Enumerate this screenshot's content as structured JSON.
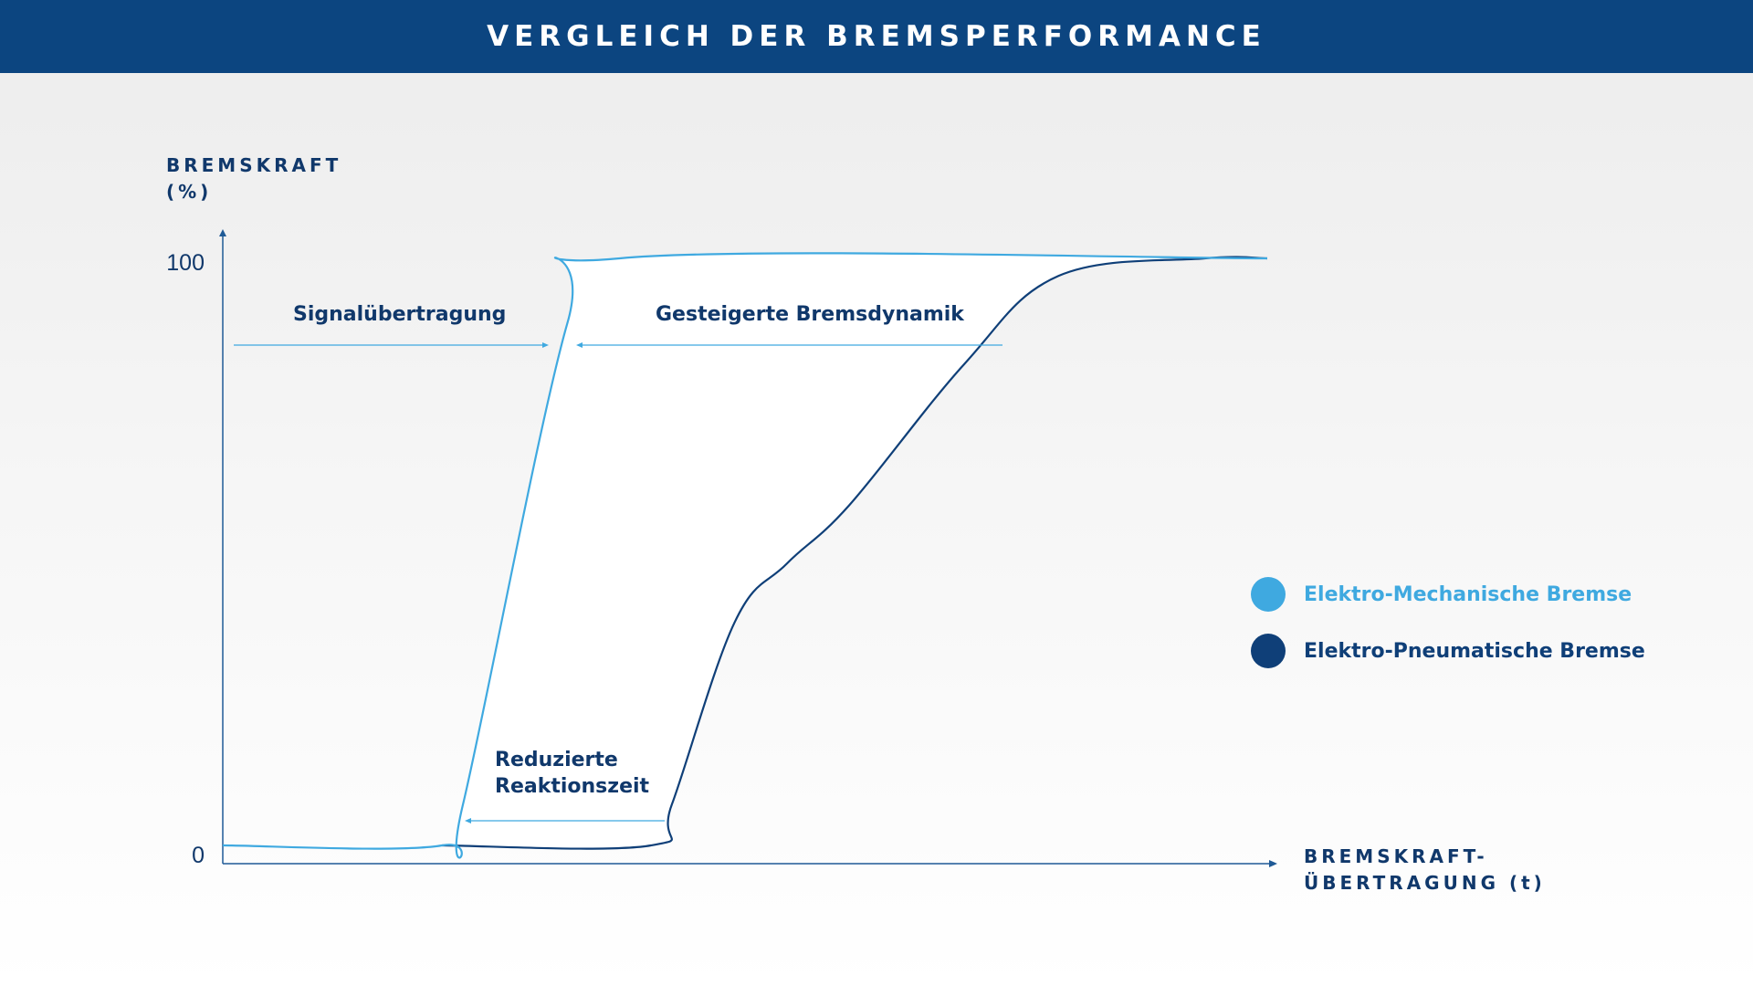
{
  "header": {
    "title": "VERGLEICH DER BREMSPERFORMANCE"
  },
  "colors": {
    "header_bg": "#0c4580",
    "axis": "#1f5a96",
    "electro_mechanical": "#3fa9e0",
    "electro_pneumatic": "#0f3f78",
    "text_dark": "#10386b"
  },
  "chart_data": {
    "type": "line",
    "ylabel": [
      "BREMSKRAFT",
      "(%)"
    ],
    "xlabel": [
      "BREMSKRAFT-",
      "ÜBERTRAGUNG (t)"
    ],
    "yticks": [
      "100",
      "0"
    ],
    "ylim": [
      0,
      100
    ],
    "series": [
      {
        "name": "Elektro-Mechanische Bremse",
        "color": "#3fa9e0",
        "points": [
          [
            0,
            0
          ],
          [
            21,
            0
          ],
          [
            23,
            7
          ],
          [
            33,
            89
          ],
          [
            38,
            100
          ],
          [
            100,
            100
          ]
        ]
      },
      {
        "name": "Elektro-Pneumatische Bremse",
        "color": "#0f3f78",
        "points": [
          [
            21,
            0
          ],
          [
            41,
            0
          ],
          [
            43,
            7
          ],
          [
            49,
            38
          ],
          [
            54,
            48
          ],
          [
            60,
            58
          ],
          [
            71,
            82
          ],
          [
            80,
            97
          ],
          [
            94,
            100
          ],
          [
            100,
            100
          ]
        ]
      }
    ],
    "annotations": [
      {
        "id": "signal",
        "text": [
          "Signalübertragung"
        ]
      },
      {
        "id": "dynamik",
        "text": [
          "Gesteigerte Bremsdynamik"
        ]
      },
      {
        "id": "reaktion",
        "text": [
          "Reduzierte",
          "Reaktionszeit"
        ]
      }
    ],
    "legend": "right"
  }
}
